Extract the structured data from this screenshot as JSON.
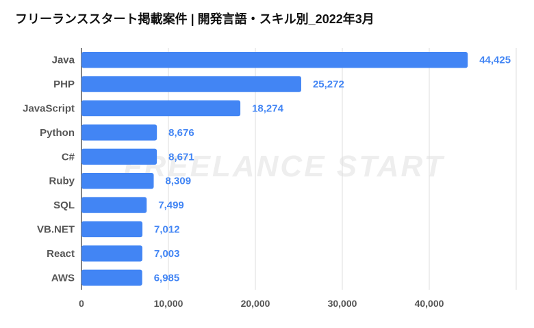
{
  "chart_data": {
    "type": "bar",
    "orientation": "horizontal",
    "title": "フリーランススタート掲載案件 | 開発言語・スキル別_2022年3月",
    "categories": [
      "Java",
      "PHP",
      "JavaScript",
      "Python",
      "C#",
      "Ruby",
      "SQL",
      "VB.NET",
      "React",
      "AWS"
    ],
    "values": [
      44425,
      25272,
      18274,
      8676,
      8671,
      8309,
      7499,
      7012,
      7003,
      6985
    ],
    "data_labels": [
      "44,425",
      "25,272",
      "18,274",
      "8,676",
      "8,671",
      "8,309",
      "7,499",
      "7,012",
      "7,003",
      "6,985"
    ],
    "xlim": [
      0,
      50000
    ],
    "x_ticks": [
      0,
      10000,
      20000,
      30000,
      40000
    ],
    "x_tick_labels": [
      "0",
      "10,000",
      "20,000",
      "30,000",
      "40,000"
    ],
    "xlabel": "",
    "ylabel": "",
    "grid": true,
    "legend": "none",
    "watermark": "FREELANCE START",
    "colors": {
      "bar": "#4285f4",
      "data_label": "#4285f4",
      "tick_label": "#555555",
      "grid": "#dddddd",
      "axis": "#333333",
      "watermark": "#eeeeee"
    }
  }
}
